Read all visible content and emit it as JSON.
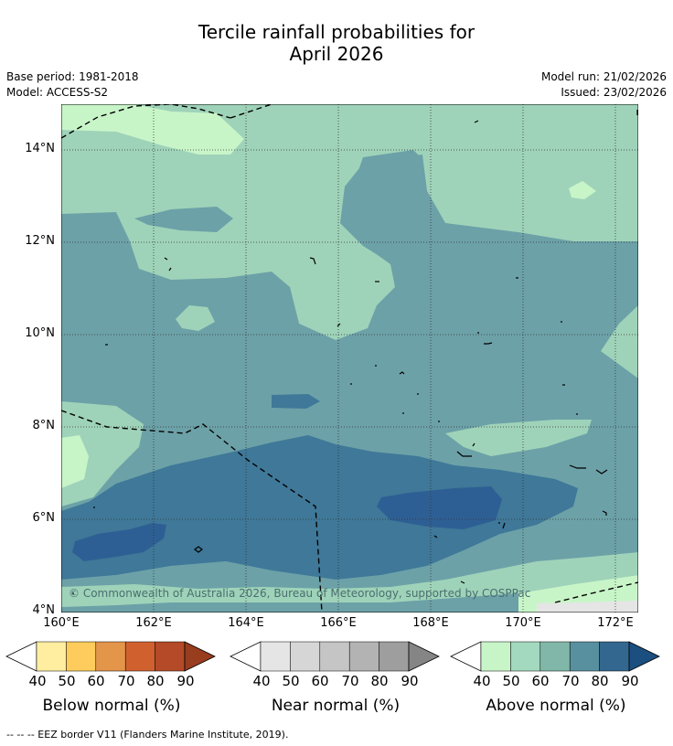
{
  "title": {
    "line1": "Tercile rainfall probabilities for",
    "line2": "April 2026"
  },
  "meta": {
    "base_period": "Base period: 1981-2018",
    "model": "Model: ACCESS-S2",
    "model_run": "Model run: 21/02/2026",
    "issued": "Issued: 23/02/2026"
  },
  "map": {
    "y_ticks": [
      "14°N",
      "12°N",
      "10°N",
      "8°N",
      "6°N",
      "4°N"
    ],
    "x_ticks": [
      "160°E",
      "162°E",
      "164°E",
      "166°E",
      "168°E",
      "170°E",
      "172°E"
    ],
    "copyright": "© Commonwealth of Australia 2026, Bureau of Meteorology, supported by COSPPac",
    "colors": {
      "lightgreen": "#c8f5c8",
      "green": "#9fd3b9",
      "teal": "#6ca1a8",
      "blue": "#3f7898",
      "darkblue": "#2e5f94",
      "ocean_grid": "#333333"
    }
  },
  "colorbars": {
    "ticks": [
      "40",
      "50",
      "60",
      "70",
      "80",
      "90"
    ],
    "below": {
      "label": "Below normal (%)",
      "colors": [
        "#ffeda0",
        "#fecc5c",
        "#e3954a",
        "#d0612f",
        "#b44a28",
        "#983d1e"
      ]
    },
    "near": {
      "label": "Near normal (%)",
      "colors": [
        "#e5e5e5",
        "#d6d6d6",
        "#c5c5c5",
        "#b3b3b3",
        "#9e9e9e",
        "#858585"
      ]
    },
    "above": {
      "label": "Above normal (%)",
      "colors": [
        "#c8f5c8",
        "#a3d9be",
        "#80b7a8",
        "#58909f",
        "#33678f",
        "#1a4f80"
      ]
    }
  },
  "footer": "--  --  -- EEZ border V11 (Flanders Marine Institute, 2019)."
}
